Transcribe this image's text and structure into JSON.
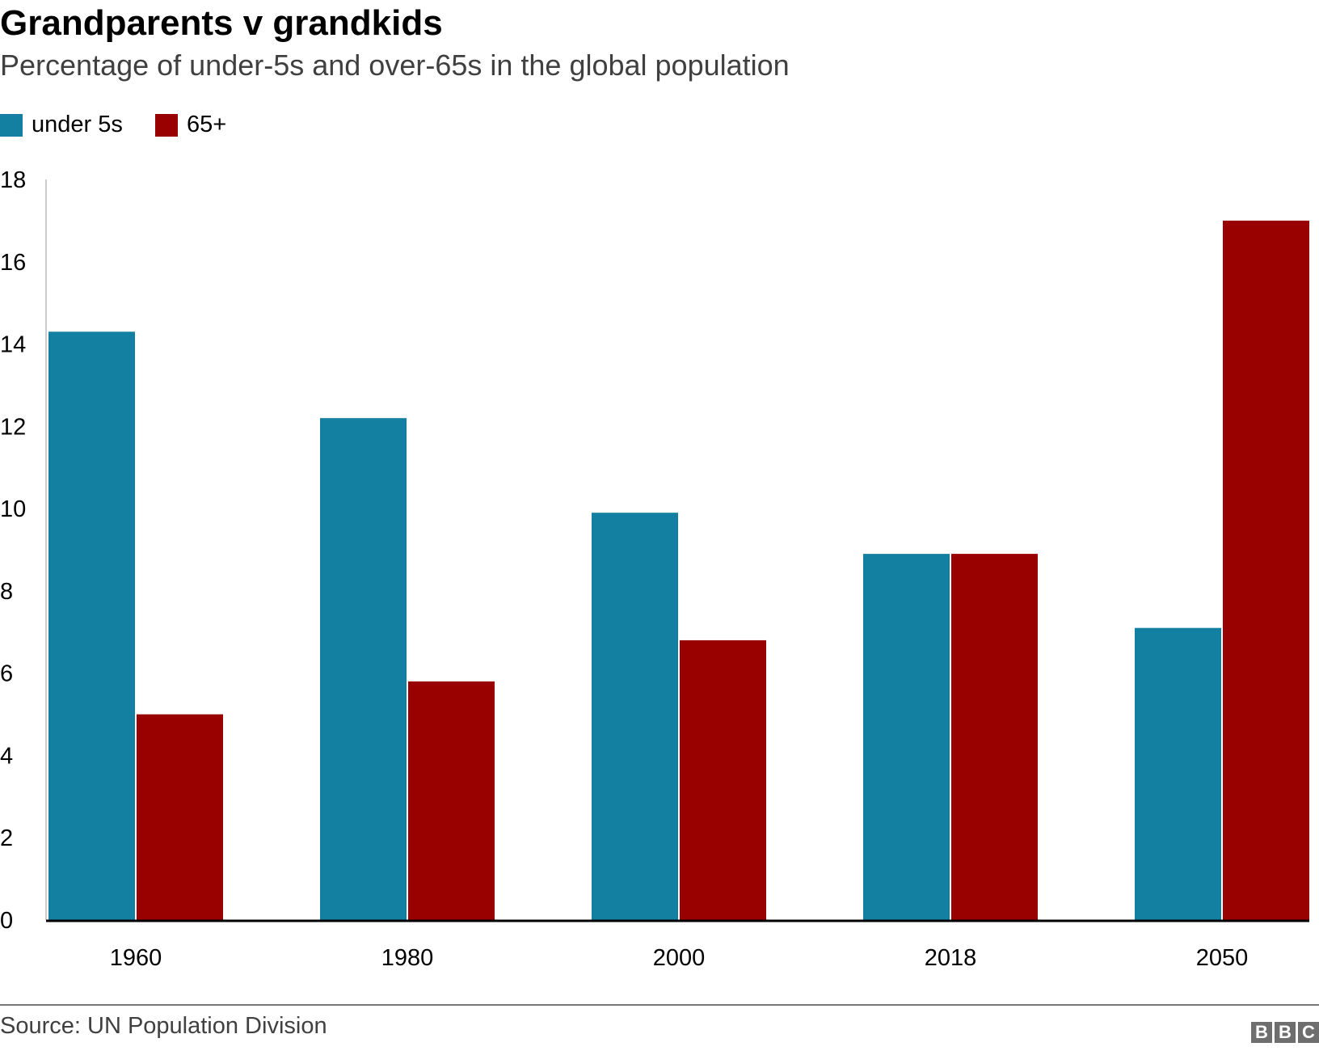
{
  "chart_data": {
    "type": "bar",
    "title": "Grandparents v grandkids",
    "subtitle": "Percentage of under-5s and over-65s in the global population",
    "categories": [
      "1960",
      "1980",
      "2000",
      "2018",
      "2050"
    ],
    "series": [
      {
        "name": "under 5s",
        "color": "#1380A1",
        "values": [
          14.3,
          12.2,
          9.9,
          8.9,
          7.1
        ]
      },
      {
        "name": "65+",
        "color": "#990000",
        "values": [
          5.0,
          5.8,
          6.8,
          8.9,
          17.0
        ]
      }
    ],
    "ylim": [
      0,
      18
    ],
    "yticks": [
      0,
      2,
      4,
      6,
      8,
      10,
      12,
      14,
      16,
      18
    ],
    "xlabel": "",
    "ylabel": "",
    "legend": "top-left",
    "grid": false,
    "source": "Source: UN Population Division",
    "logo": "BBC"
  }
}
